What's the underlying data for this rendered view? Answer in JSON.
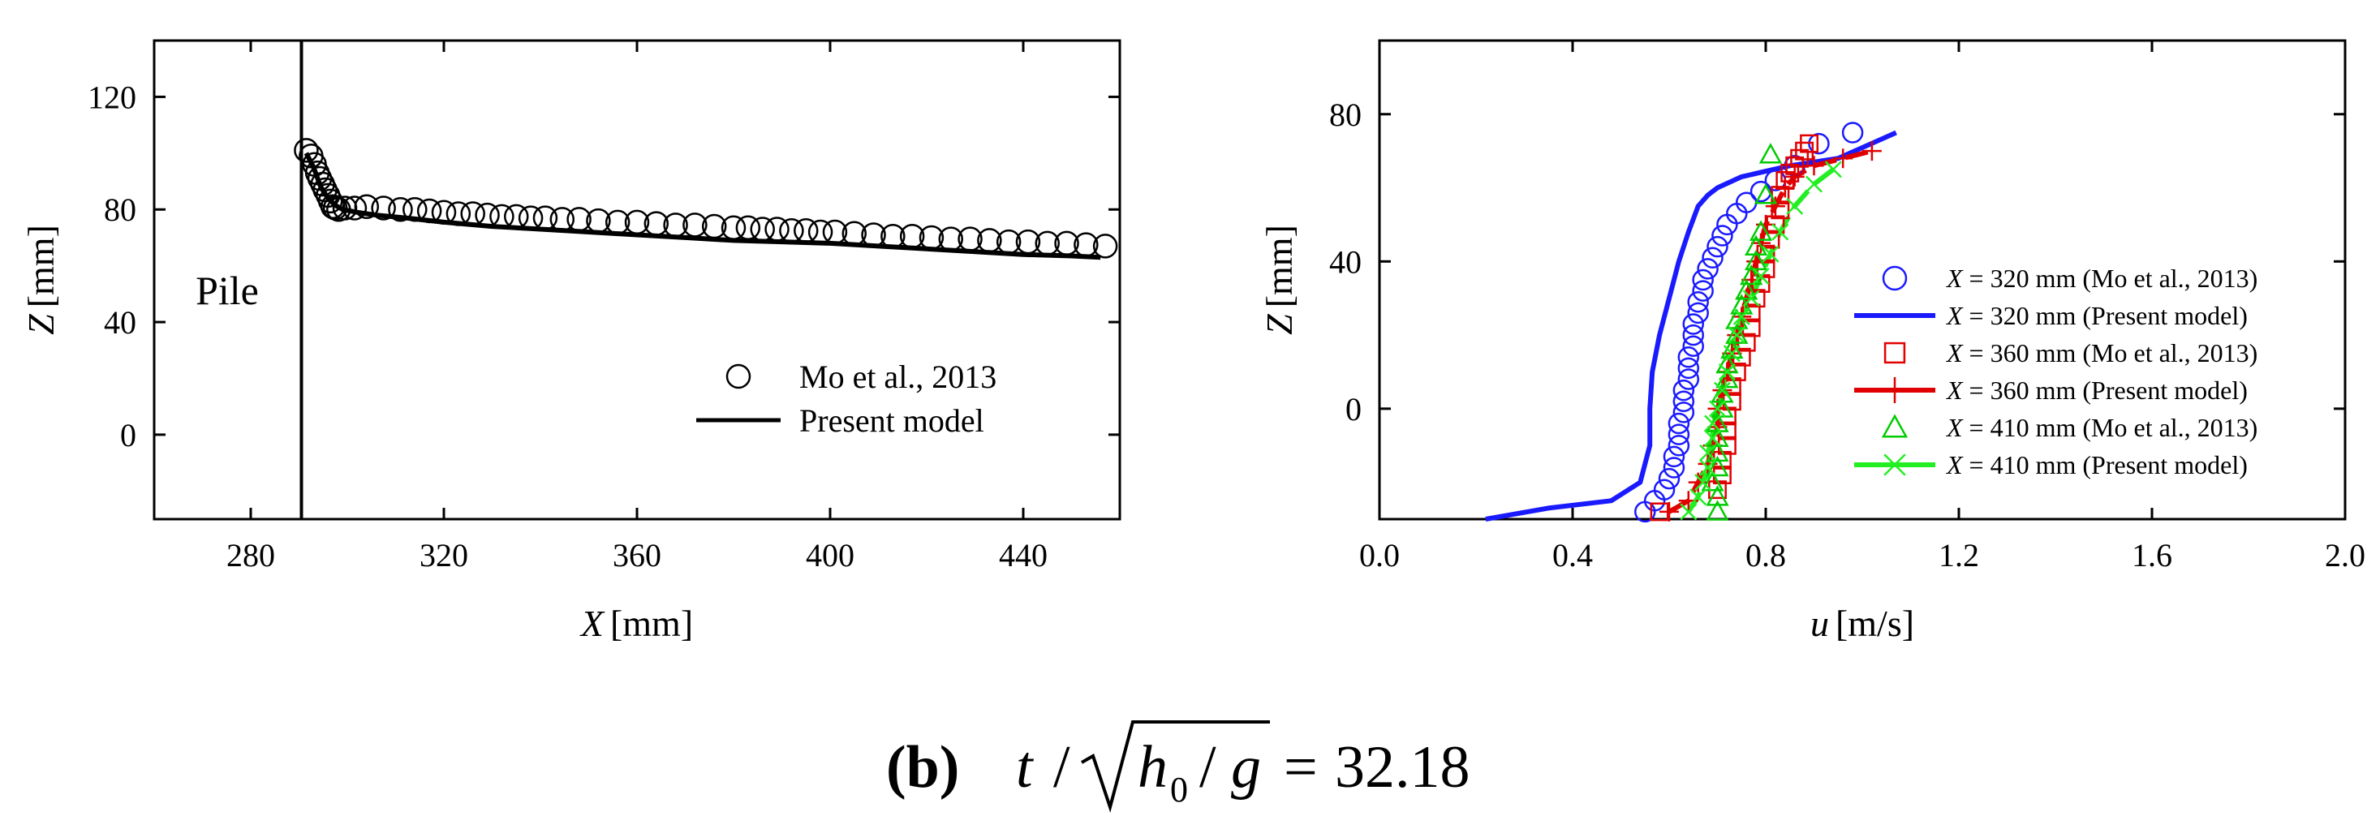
{
  "caption": {
    "label": "(b)",
    "t_var": "t",
    "slash": "/",
    "h_var": "h",
    "h_sub": "0",
    "g_var": "g",
    "equals": "=",
    "value": "32.18"
  },
  "chart_data": [
    {
      "type": "scatter",
      "name": "free-surface-profile",
      "title": "",
      "xlabel_var": "X",
      "xlabel_unit": "[mm]",
      "ylabel_var": "Z",
      "ylabel_unit": "[mm]",
      "xlim": [
        260,
        460
      ],
      "ylim": [
        -30,
        140
      ],
      "xticks": [
        280,
        320,
        360,
        400,
        440
      ],
      "yticks": [
        0,
        40,
        80,
        120
      ],
      "annotation": {
        "text": "Pile",
        "x": 275,
        "y": 52
      },
      "pile_x": 290.5,
      "legend_position": "center-right",
      "series": [
        {
          "name": "Mo et al., 2013",
          "marker": "circle-open",
          "color": "#000000",
          "x": [
            291.5,
            292.5,
            293.2,
            293.8,
            294.3,
            294.9,
            295.4,
            296.0,
            296.5,
            297.0,
            297.5,
            298.2,
            299.5,
            301.5,
            304,
            307.5,
            311,
            314,
            317,
            320,
            323,
            326,
            329,
            332,
            335,
            338,
            341,
            344.5,
            348,
            352,
            356,
            360,
            364,
            368,
            372,
            376,
            380,
            383,
            386,
            389,
            392,
            395,
            398,
            401,
            405,
            409,
            413,
            417,
            421,
            425,
            429,
            433,
            437,
            441,
            445,
            449,
            453,
            457
          ],
          "y": [
            101,
            99,
            96,
            93,
            91,
            89,
            87,
            85,
            83,
            81,
            80.5,
            80,
            80.5,
            80.5,
            81,
            80.5,
            80,
            80,
            79.5,
            79,
            78.5,
            78.5,
            78,
            77.5,
            77.5,
            77,
            77,
            76.5,
            76.5,
            76,
            75.5,
            75.5,
            75,
            74.5,
            74.5,
            74,
            73.5,
            73.5,
            73,
            73,
            72.5,
            72.5,
            72,
            72,
            71.5,
            71,
            70.5,
            70.5,
            70,
            69.5,
            69.5,
            69,
            68.5,
            68.5,
            68,
            68,
            67.5,
            67
          ]
        },
        {
          "name": "Present model",
          "marker": "line",
          "color": "#000000",
          "x": [
            291.5,
            293,
            294.5,
            296,
            297.5,
            299,
            302,
            306,
            312,
            320,
            330,
            340,
            350,
            360,
            370,
            380,
            390,
            400,
            410,
            420,
            430,
            440,
            450,
            456
          ],
          "y": [
            100,
            95,
            88,
            84,
            81.5,
            80,
            79,
            78,
            77,
            75.5,
            74,
            73,
            72,
            71,
            70,
            69,
            68.5,
            68,
            67,
            66,
            65,
            64,
            63.5,
            63
          ]
        }
      ]
    },
    {
      "type": "scatter",
      "name": "velocity-profiles",
      "title": "",
      "xlabel_var": "u",
      "xlabel_unit": "[m/s]",
      "ylabel_var": "Z",
      "ylabel_unit": "[mm]",
      "xlim": [
        0.0,
        2.0
      ],
      "ylim": [
        -30,
        100
      ],
      "xticks": [
        "0.0",
        "0.4",
        "0.8",
        "1.2",
        "1.6",
        "2.0"
      ],
      "yticks": [
        0,
        40,
        80
      ],
      "legend_position": "center-right",
      "series": [
        {
          "name": "X = 320 mm (Mo et al., 2013)",
          "legend_var": "X",
          "legend_rest": " = 320 mm (Mo et al., 2013)",
          "marker": "circle-open",
          "color": "#1a1aff",
          "x": [
            0.55,
            0.57,
            0.59,
            0.6,
            0.61,
            0.61,
            0.62,
            0.62,
            0.62,
            0.63,
            0.63,
            0.63,
            0.64,
            0.64,
            0.64,
            0.65,
            0.65,
            0.65,
            0.66,
            0.66,
            0.67,
            0.67,
            0.68,
            0.69,
            0.7,
            0.71,
            0.72,
            0.74,
            0.76,
            0.79,
            0.82,
            0.86,
            0.91,
            0.98
          ],
          "y": [
            -28,
            -25,
            -22,
            -19,
            -16,
            -13,
            -10,
            -7,
            -4,
            -1,
            2,
            5,
            8,
            11,
            14,
            17,
            20,
            23,
            26,
            29,
            32,
            35,
            38,
            41,
            44,
            47,
            50,
            53,
            56,
            59,
            62,
            66,
            72,
            75
          ]
        },
        {
          "name": "X = 320 mm (Present model)",
          "legend_var": "X",
          "legend_rest": " = 320 mm (Present model)",
          "marker": "line",
          "color": "#1a1aff",
          "x": [
            0.22,
            0.35,
            0.48,
            0.54,
            0.56,
            0.56,
            0.565,
            0.58,
            0.6,
            0.62,
            0.64,
            0.66,
            0.68,
            0.7,
            0.75,
            0.85,
            0.95,
            1.07
          ],
          "y": [
            -30,
            -27,
            -25,
            -20,
            -10,
            0,
            10,
            20,
            30,
            40,
            48,
            55,
            58,
            60,
            63,
            66,
            68,
            75
          ]
        },
        {
          "name": "X = 360 mm (Mo et al., 2013)",
          "legend_var": "X",
          "legend_rest": " = 360 mm (Mo et al., 2013)",
          "marker": "square-open",
          "color": "#e00000",
          "x": [
            0.58,
            0.7,
            0.71,
            0.71,
            0.72,
            0.72,
            0.72,
            0.73,
            0.73,
            0.74,
            0.75,
            0.76,
            0.77,
            0.77,
            0.78,
            0.79,
            0.8,
            0.8,
            0.81,
            0.82,
            0.83,
            0.83,
            0.84,
            0.85,
            0.86,
            0.87,
            0.88,
            0.89
          ],
          "y": [
            -28,
            -22,
            -18,
            -14,
            -10,
            -6,
            -2,
            2,
            6,
            10,
            14,
            18,
            22,
            26,
            30,
            34,
            38,
            42,
            46,
            50,
            54,
            58,
            62,
            64,
            66,
            68,
            70,
            72
          ]
        },
        {
          "name": "X = 360 mm (Present model)",
          "legend_var": "X",
          "legend_rest": " = 360 mm (Present model)",
          "marker": "line-plus",
          "color": "#e00000",
          "x": [
            0.6,
            0.64,
            0.66,
            0.68,
            0.69,
            0.7,
            0.7,
            0.71,
            0.72,
            0.73,
            0.74,
            0.75,
            0.76,
            0.77,
            0.78,
            0.79,
            0.8,
            0.82,
            0.84,
            0.86,
            0.9,
            0.96,
            1.02
          ],
          "y": [
            -28,
            -25,
            -20,
            -15,
            -10,
            -5,
            0,
            5,
            10,
            15,
            20,
            25,
            30,
            35,
            40,
            45,
            50,
            55,
            60,
            63,
            66,
            68,
            70
          ]
        },
        {
          "name": "X = 410 mm (Mo et al., 2013)",
          "legend_var": "X",
          "legend_rest": " = 410 mm (Mo et al., 2013)",
          "marker": "triangle-open",
          "color": "#00cc00",
          "x": [
            0.7,
            0.7,
            0.69,
            0.7,
            0.7,
            0.7,
            0.7,
            0.71,
            0.71,
            0.72,
            0.72,
            0.73,
            0.74,
            0.74,
            0.75,
            0.76,
            0.77,
            0.78,
            0.78,
            0.79,
            0.8,
            0.81
          ],
          "y": [
            -28,
            -24,
            -20,
            -16,
            -12,
            -8,
            -4,
            0,
            4,
            8,
            12,
            16,
            20,
            24,
            28,
            32,
            36,
            40,
            44,
            48,
            58,
            69
          ]
        },
        {
          "name": "X = 410 mm (Present model)",
          "legend_var": "X",
          "legend_rest": " = 410 mm (Present model)",
          "marker": "line-x",
          "color": "#22ee22",
          "x": [
            0.64,
            0.66,
            0.67,
            0.68,
            0.68,
            0.69,
            0.69,
            0.7,
            0.71,
            0.72,
            0.73,
            0.74,
            0.75,
            0.77,
            0.79,
            0.81,
            0.83,
            0.86,
            0.9,
            0.94
          ],
          "y": [
            -28,
            -24,
            -20,
            -16,
            -12,
            -8,
            -4,
            0,
            5,
            10,
            15,
            20,
            25,
            30,
            36,
            42,
            48,
            55,
            61,
            65
          ]
        }
      ]
    }
  ]
}
